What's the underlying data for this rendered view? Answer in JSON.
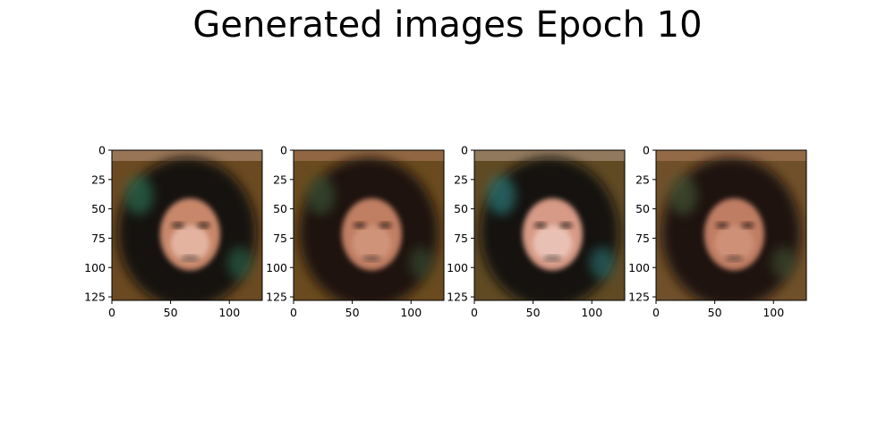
{
  "figure": {
    "title": "Generated images Epoch 10"
  },
  "chart_data": [
    {
      "type": "image",
      "subject": "generated face",
      "image_extent": [
        0,
        128,
        128,
        0
      ],
      "x_ticks": [
        0,
        50,
        100
      ],
      "y_ticks": [
        0,
        25,
        50,
        75,
        100,
        125
      ],
      "palette": {
        "bg": "#6b4a22",
        "dark": "#0c0b07",
        "face": "#c8876a",
        "light": "#efc6b8",
        "accent": "#2f7a5c"
      }
    },
    {
      "type": "image",
      "subject": "generated face",
      "image_extent": [
        0,
        128,
        128,
        0
      ],
      "x_ticks": [
        0,
        50,
        100
      ],
      "y_ticks": [
        0,
        25,
        50,
        75,
        100,
        125
      ],
      "palette": {
        "bg": "#6a4b1f",
        "dark": "#120f0a",
        "face": "#c07e63",
        "light": "#d69d84",
        "accent": "#3e5a3a"
      }
    },
    {
      "type": "image",
      "subject": "generated face",
      "image_extent": [
        0,
        128,
        128,
        0
      ],
      "x_ticks": [
        0,
        50,
        100
      ],
      "y_ticks": [
        0,
        25,
        50,
        75,
        100,
        125
      ],
      "palette": {
        "bg": "#5f4a24",
        "dark": "#0d0b08",
        "face": "#d79a86",
        "light": "#f2d2c8",
        "accent": "#2d8a8a"
      }
    },
    {
      "type": "image",
      "subject": "generated face",
      "image_extent": [
        0,
        128,
        128,
        0
      ],
      "x_ticks": [
        0,
        50,
        100
      ],
      "y_ticks": [
        0,
        25,
        50,
        75,
        100,
        125
      ],
      "palette": {
        "bg": "#70502a",
        "dark": "#15110b",
        "face": "#bf7d63",
        "light": "#d59a82",
        "accent": "#4a5f3a"
      }
    }
  ]
}
